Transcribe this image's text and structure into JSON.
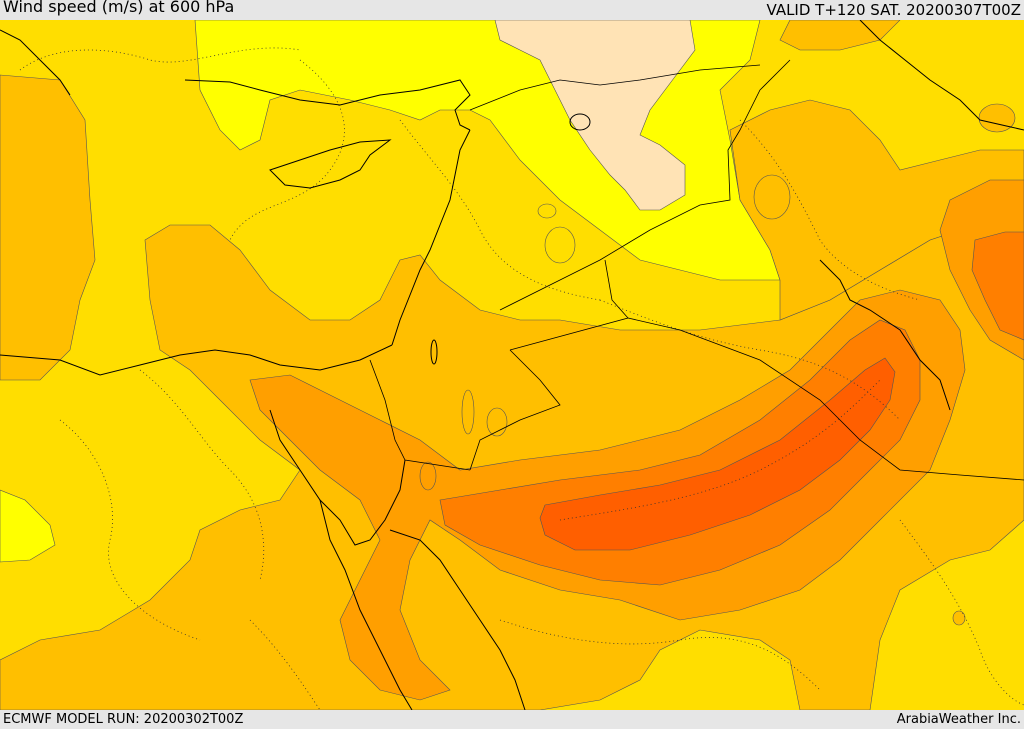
{
  "header": {
    "title": "Wind speed (m/s) at 600 hPa",
    "valid": "VALID T+120 SAT. 20200307T00Z"
  },
  "footer": {
    "model_run": "ECMWF MODEL RUN: 20200302T00Z",
    "credit": "ArabiaWeather Inc."
  },
  "map": {
    "colors": {
      "level_1": "#ffe3b5",
      "level_2": "#ffff00",
      "level_3": "#ffde00",
      "level_4": "#ffbf00",
      "level_5": "#ff9f00",
      "level_6": "#ff7f00",
      "level_7": "#ff5f00",
      "coast": "#000000"
    }
  }
}
